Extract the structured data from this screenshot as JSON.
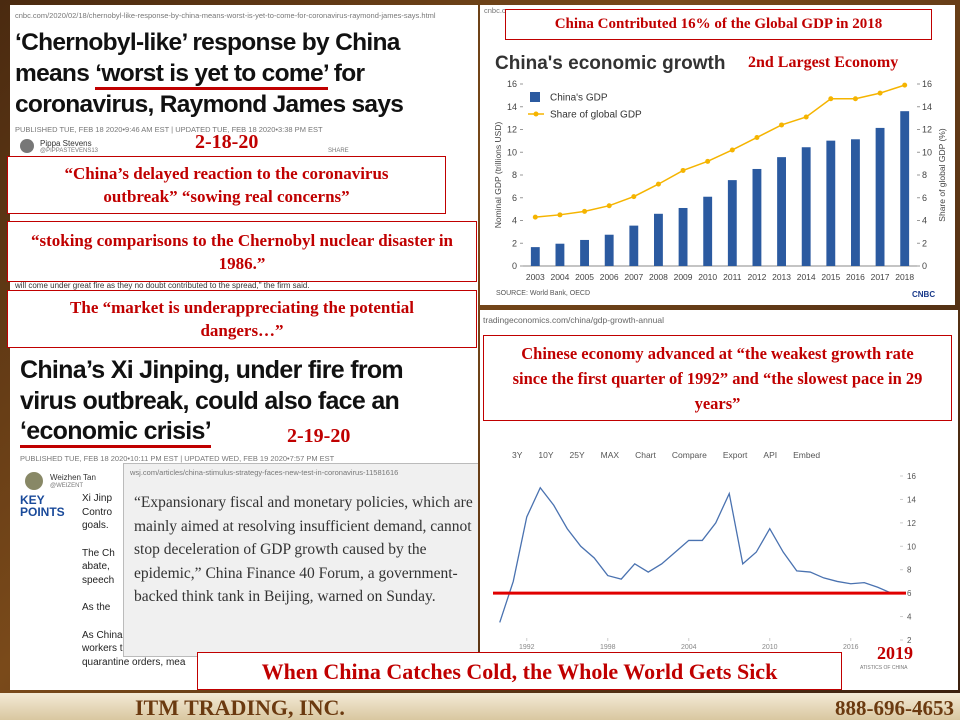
{
  "slide": {
    "banner": "When China Catches Cold, the Whole World Gets Sick",
    "company": "ITM TRADING, INC.",
    "phone": "888-696-4653"
  },
  "article_1": {
    "url": "cnbc.com/2020/02/18/chernobyl-like-response-by-china-means-worst-is-yet-to-come-for-coronavirus-raymond-james-says.html",
    "headline_line_1": "‘Chernobyl-like’ response by China",
    "headline_line_2_before": "means ",
    "headline_line_2_underlined": "‘worst is yet to come’",
    "headline_line_2_after": " for",
    "headline_line_3": "coronavirus, Raymond James says",
    "meta": "PUBLISHED TUE, FEB 18 2020•9:46 AM EST | UPDATED TUE, FEB 18 2020•3:38 PM EST",
    "author": "Pippa Stevens",
    "handle": "@PIPPASTEVENS13",
    "share": "SHARE",
    "date": "2-18-20",
    "snippet": "will come under great fire as they no doubt contributed to the spread,\" the firm said."
  },
  "quotes": [
    "“China’s delayed reaction to the coronavirus outbreak” “sowing real concerns”",
    "“stoking comparisons to the Chernobyl nuclear disaster in 1986.”",
    "The “market is underappreciating the potential dangers…”"
  ],
  "article_2": {
    "headline_line_1": "China’s Xi Jinping, under fire from",
    "headline_line_2": "virus outbreak, could also face an",
    "headline_line_3": "‘economic crisis’",
    "date": "2-19-20",
    "meta": "PUBLISHED TUE, FEB 18 2020•10:11 PM EST | UPDATED WED, FEB 19 2020•7:57 PM EST",
    "author": "Weizhen Tan",
    "handle": "@WEIZENT",
    "key_points": "KEY POINTS",
    "bullets": [
      "Xi Jinp",
      "Contro",
      "goals.",
      "The Ch",
      "abate,",
      "speech",
      "As the",
      "As China struggles to",
      "workers trickling back,",
      "quarantine orders, mea"
    ]
  },
  "wsj": {
    "url": "wsj.com/articles/china-stimulus-strategy-faces-new-test-in-coronavirus-11581616",
    "quote": "“Expansionary fiscal and monetary policies, which are mainly aimed at resolving insufficient demand, cannot stop deceleration of GDP growth caused by the epidemic,” China Finance 40 Forum, a government-backed think tank in Beijing, warned on Sunday."
  },
  "chart_data": [
    {
      "type": "bar",
      "banner": "China Contributed 16% of the Global GDP in 2018",
      "source_url": "cnbc.com",
      "title": "China's economic growth",
      "annotation": "2nd Largest Economy",
      "y_label": "Nominal GDP (trillions USD)",
      "y2_label": "Share of global GDP (%)",
      "source": "SOURCE: World Bank, OECD",
      "logo": "CNBC",
      "legend": "upper left",
      "categories": [
        "2003",
        "2004",
        "2005",
        "2006",
        "2007",
        "2008",
        "2009",
        "2010",
        "2011",
        "2012",
        "2013",
        "2014",
        "2015",
        "2016",
        "2017",
        "2018"
      ],
      "series": [
        {
          "name": "China's GDP",
          "color": "#2b5aa0",
          "values": [
            1.66,
            1.96,
            2.29,
            2.75,
            3.55,
            4.59,
            5.1,
            6.09,
            7.55,
            8.53,
            9.57,
            10.44,
            11.02,
            11.14,
            12.14,
            13.61
          ]
        },
        {
          "name": "Share of global GDP",
          "color": "#f5b400",
          "axis": "y2",
          "values": [
            4.3,
            4.5,
            4.8,
            5.3,
            6.1,
            7.2,
            8.4,
            9.2,
            10.2,
            11.3,
            12.4,
            13.1,
            14.7,
            14.7,
            15.2,
            15.9
          ]
        }
      ],
      "ylim": [
        0,
        16
      ],
      "yticks": [
        0,
        2,
        4,
        6,
        8,
        10,
        12,
        14,
        16
      ],
      "y2lim": [
        0,
        16
      ],
      "y2ticks": [
        0,
        2,
        4,
        6,
        8,
        10,
        12,
        14,
        16
      ]
    },
    {
      "type": "line",
      "source_url": "tradingeconomics.com/china/gdp-growth-annual",
      "quote": "Chinese economy advanced at “the weakest growth rate since the first quarter of 1992” and “the slowest pace in 29 years”",
      "toolbar": [
        "3Y",
        "10Y",
        "25Y",
        "MAX",
        "Chart",
        "Compare",
        "Export",
        "API",
        "Embed"
      ],
      "annotation": "2019",
      "source": "ATISTICS OF CHINA",
      "color": "#4a72b0",
      "x": [
        1990,
        1991,
        1992,
        1993,
        1994,
        1995,
        1996,
        1997,
        1998,
        1999,
        2000,
        2001,
        2002,
        2003,
        2004,
        2005,
        2006,
        2007,
        2008,
        2009,
        2010,
        2011,
        2012,
        2013,
        2014,
        2015,
        2016,
        2017,
        2018,
        2019
      ],
      "values": [
        3.5,
        7.0,
        12.5,
        15.0,
        13.5,
        11.5,
        10.0,
        9.0,
        7.5,
        7.2,
        8.5,
        7.8,
        8.5,
        9.5,
        10.5,
        10.5,
        12.0,
        14.5,
        8.5,
        9.5,
        11.5,
        9.5,
        7.9,
        7.8,
        7.3,
        7.0,
        6.8,
        6.9,
        6.5,
        6.0
      ],
      "reference_line": {
        "value": 6,
        "color": "#e00000"
      },
      "xlim": [
        1989.5,
        2019.5
      ],
      "xticks": [
        1992,
        1998,
        2004,
        2010,
        2016
      ],
      "ylim": [
        2,
        16
      ],
      "yticks": [
        2,
        4,
        6,
        8,
        10,
        12,
        14,
        16
      ]
    }
  ]
}
